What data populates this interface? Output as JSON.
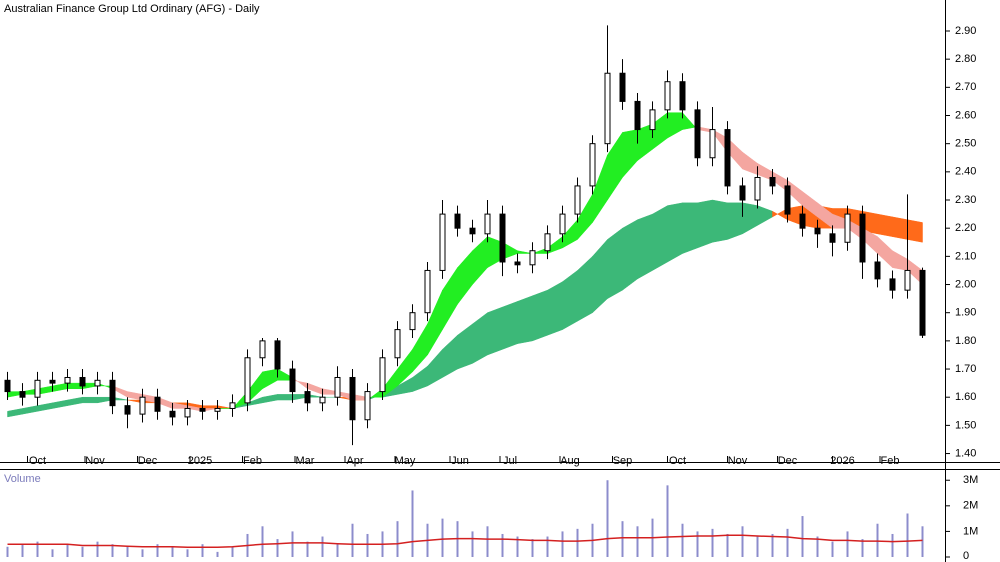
{
  "chart_data": {
    "type": "candlestick",
    "title": "Australian Finance Group Ltd Ordinary (AFG) - Daily",
    "x": [
      3,
      9,
      15,
      21,
      27,
      33,
      39,
      45,
      51,
      57,
      63,
      69,
      75,
      81,
      87,
      93,
      99,
      105,
      111,
      117,
      123,
      129,
      135,
      141,
      147,
      153,
      159,
      165,
      171,
      177,
      183,
      189,
      195,
      201,
      207,
      213,
      219,
      225,
      231,
      237,
      243,
      249,
      255,
      261,
      267,
      273,
      279,
      285,
      291,
      297,
      303,
      309,
      315,
      321,
      327,
      333,
      339,
      345,
      351,
      357,
      363,
      369
    ],
    "open": [
      1.66,
      1.62,
      1.6,
      1.66,
      1.65,
      1.67,
      1.64,
      1.66,
      1.57,
      1.54,
      1.6,
      1.55,
      1.53,
      1.56,
      1.55,
      1.56,
      1.58,
      1.74,
      1.8,
      1.7,
      1.62,
      1.58,
      1.6,
      1.67,
      1.52,
      1.62,
      1.74,
      1.84,
      1.9,
      2.05,
      2.25,
      2.2,
      2.18,
      2.25,
      2.08,
      2.07,
      2.12,
      2.18,
      2.25,
      2.35,
      2.5,
      2.75,
      2.65,
      2.55,
      2.62,
      2.72,
      2.62,
      2.45,
      2.55,
      2.35,
      2.3,
      2.38,
      2.35,
      2.25,
      2.2,
      2.18,
      2.15,
      2.25,
      2.08,
      2.02,
      1.98,
      2.05
    ],
    "high": [
      1.69,
      1.65,
      1.69,
      1.69,
      1.7,
      1.7,
      1.69,
      1.69,
      1.6,
      1.63,
      1.63,
      1.58,
      1.59,
      1.59,
      1.59,
      1.61,
      1.77,
      1.81,
      1.81,
      1.73,
      1.65,
      1.63,
      1.71,
      1.7,
      1.65,
      1.77,
      1.87,
      1.93,
      2.08,
      2.3,
      2.28,
      2.23,
      2.3,
      2.28,
      2.11,
      2.15,
      2.21,
      2.28,
      2.38,
      2.53,
      2.92,
      2.8,
      2.68,
      2.65,
      2.76,
      2.75,
      2.65,
      2.63,
      2.58,
      2.38,
      2.42,
      2.41,
      2.38,
      2.28,
      2.23,
      2.21,
      2.28,
      2.28,
      2.11,
      2.05,
      2.32,
      2.06
    ],
    "low": [
      1.59,
      1.57,
      1.57,
      1.62,
      1.62,
      1.61,
      1.61,
      1.54,
      1.49,
      1.51,
      1.52,
      1.5,
      1.5,
      1.52,
      1.52,
      1.53,
      1.55,
      1.71,
      1.67,
      1.58,
      1.55,
      1.55,
      1.57,
      1.43,
      1.49,
      1.59,
      1.71,
      1.81,
      1.87,
      2.02,
      2.17,
      2.15,
      2.15,
      2.03,
      2.04,
      2.04,
      2.09,
      2.15,
      2.22,
      2.32,
      2.47,
      2.62,
      2.5,
      2.52,
      2.59,
      2.59,
      2.42,
      2.42,
      2.32,
      2.24,
      2.27,
      2.32,
      2.22,
      2.17,
      2.13,
      2.1,
      2.12,
      2.02,
      1.99,
      1.95,
      1.95,
      1.81
    ],
    "close": [
      1.62,
      1.6,
      1.66,
      1.65,
      1.67,
      1.64,
      1.66,
      1.57,
      1.54,
      1.6,
      1.55,
      1.53,
      1.56,
      1.55,
      1.56,
      1.58,
      1.74,
      1.8,
      1.7,
      1.62,
      1.58,
      1.6,
      1.67,
      1.52,
      1.62,
      1.74,
      1.84,
      1.9,
      2.05,
      2.25,
      2.2,
      2.18,
      2.25,
      2.08,
      2.07,
      2.12,
      2.18,
      2.25,
      2.35,
      2.5,
      2.75,
      2.65,
      2.55,
      2.62,
      2.72,
      2.62,
      2.45,
      2.55,
      2.35,
      2.3,
      2.38,
      2.35,
      2.25,
      2.2,
      2.18,
      2.15,
      2.25,
      2.08,
      2.02,
      1.98,
      2.05,
      1.82
    ],
    "candle_color": "#000000",
    "xlim": [
      0,
      378
    ],
    "xticks": [
      {
        "value": 11,
        "label": "Oct"
      },
      {
        "value": 34,
        "label": "Nov"
      },
      {
        "value": 55,
        "label": "Dec"
      },
      {
        "value": 76,
        "label": "2025"
      },
      {
        "value": 97,
        "label": "Feb"
      },
      {
        "value": 118,
        "label": "Mar"
      },
      {
        "value": 138,
        "label": "Apr"
      },
      {
        "value": 158,
        "label": "May"
      },
      {
        "value": 180,
        "label": "Jun"
      },
      {
        "value": 200,
        "label": "Jul"
      },
      {
        "value": 224,
        "label": "Aug"
      },
      {
        "value": 245,
        "label": "Sep"
      },
      {
        "value": 267,
        "label": "Oct"
      },
      {
        "value": 291,
        "label": "Nov"
      },
      {
        "value": 311,
        "label": "Dec"
      },
      {
        "value": 333,
        "label": "2026"
      },
      {
        "value": 352,
        "label": "Feb"
      }
    ],
    "ylim": [
      1.37,
      3.01
    ],
    "yticks": [
      {
        "value": 1.4,
        "label": "1.40"
      },
      {
        "value": 1.5,
        "label": "1.50"
      },
      {
        "value": 1.6,
        "label": "1.60"
      },
      {
        "value": 1.7,
        "label": "1.70"
      },
      {
        "value": 1.8,
        "label": "1.80"
      },
      {
        "value": 1.9,
        "label": "1.90"
      },
      {
        "value": 2.0,
        "label": "2.00"
      },
      {
        "value": 2.1,
        "label": "2.10"
      },
      {
        "value": 2.2,
        "label": "2.20"
      },
      {
        "value": 2.3,
        "label": "2.30"
      },
      {
        "value": 2.4,
        "label": "2.40"
      },
      {
        "value": 2.5,
        "label": "2.50"
      },
      {
        "value": 2.6,
        "label": "2.60"
      },
      {
        "value": 2.7,
        "label": "2.70"
      },
      {
        "value": 2.8,
        "label": "2.80"
      },
      {
        "value": 2.9,
        "label": "2.90"
      }
    ],
    "ribbons": [
      {
        "up_color": "#3cb878",
        "down_color": "#ff6a1a",
        "a": [
          1.55,
          1.56,
          1.57,
          1.58,
          1.59,
          1.6,
          1.6,
          1.6,
          1.59,
          1.58,
          1.58,
          1.57,
          1.56,
          1.56,
          1.56,
          1.56,
          1.58,
          1.6,
          1.61,
          1.61,
          1.61,
          1.6,
          1.6,
          1.59,
          1.59,
          1.61,
          1.64,
          1.67,
          1.71,
          1.77,
          1.82,
          1.86,
          1.9,
          1.92,
          1.94,
          1.96,
          1.98,
          2.01,
          2.05,
          2.1,
          2.16,
          2.2,
          2.23,
          2.25,
          2.28,
          2.29,
          2.29,
          2.3,
          2.29,
          2.29,
          2.28,
          2.26,
          2.23,
          2.21,
          2.2,
          2.2,
          2.2,
          2.19,
          2.18,
          2.17,
          2.16,
          2.15
        ],
        "b": [
          1.53,
          1.54,
          1.55,
          1.56,
          1.57,
          1.58,
          1.58,
          1.59,
          1.59,
          1.59,
          1.59,
          1.58,
          1.58,
          1.57,
          1.57,
          1.56,
          1.57,
          1.58,
          1.59,
          1.59,
          1.6,
          1.6,
          1.6,
          1.6,
          1.6,
          1.6,
          1.61,
          1.62,
          1.64,
          1.67,
          1.7,
          1.72,
          1.75,
          1.77,
          1.79,
          1.8,
          1.82,
          1.84,
          1.87,
          1.9,
          1.95,
          1.98,
          2.02,
          2.05,
          2.08,
          2.11,
          2.13,
          2.15,
          2.16,
          2.18,
          2.21,
          2.24,
          2.27,
          2.28,
          2.28,
          2.27,
          2.27,
          2.26,
          2.25,
          2.24,
          2.23,
          2.22
        ]
      },
      {
        "up_color": "#22ee22",
        "down_color": "#f4a6a0",
        "a": [
          1.62,
          1.62,
          1.63,
          1.64,
          1.65,
          1.65,
          1.65,
          1.63,
          1.6,
          1.59,
          1.58,
          1.56,
          1.56,
          1.55,
          1.56,
          1.56,
          1.62,
          1.69,
          1.7,
          1.67,
          1.63,
          1.61,
          1.61,
          1.59,
          1.59,
          1.63,
          1.7,
          1.77,
          1.86,
          1.98,
          2.06,
          2.12,
          2.17,
          2.15,
          2.12,
          2.11,
          2.13,
          2.17,
          2.23,
          2.32,
          2.46,
          2.54,
          2.55,
          2.57,
          2.61,
          2.61,
          2.55,
          2.54,
          2.47,
          2.41,
          2.39,
          2.37,
          2.33,
          2.28,
          2.24,
          2.2,
          2.2,
          2.16,
          2.11,
          2.06,
          2.05,
          2.0
        ],
        "b": [
          1.6,
          1.61,
          1.61,
          1.62,
          1.63,
          1.63,
          1.64,
          1.64,
          1.62,
          1.61,
          1.6,
          1.58,
          1.57,
          1.56,
          1.56,
          1.56,
          1.58,
          1.63,
          1.66,
          1.66,
          1.65,
          1.63,
          1.62,
          1.61,
          1.6,
          1.6,
          1.64,
          1.69,
          1.75,
          1.84,
          1.93,
          2.0,
          2.06,
          2.09,
          2.11,
          2.11,
          2.11,
          2.13,
          2.16,
          2.22,
          2.3,
          2.38,
          2.44,
          2.48,
          2.52,
          2.55,
          2.56,
          2.55,
          2.52,
          2.47,
          2.43,
          2.4,
          2.37,
          2.33,
          2.29,
          2.25,
          2.23,
          2.2,
          2.17,
          2.12,
          2.09,
          2.05
        ]
      }
    ],
    "volume": {
      "title": "Volume",
      "color": "#8c8ccc",
      "average_color": "#d42020",
      "values": [
        400000,
        500000,
        600000,
        300000,
        500000,
        400000,
        600000,
        500000,
        400000,
        300000,
        500000,
        400000,
        300000,
        500000,
        200000,
        400000,
        900000,
        1200000,
        700000,
        1000000,
        600000,
        800000,
        500000,
        1300000,
        900000,
        1000000,
        1400000,
        2600000,
        1300000,
        1500000,
        1400000,
        1000000,
        1200000,
        900000,
        800000,
        700000,
        800000,
        1000000,
        1100000,
        1300000,
        3000000,
        1400000,
        1200000,
        1500000,
        2800000,
        1300000,
        1000000,
        1100000,
        900000,
        1200000,
        800000,
        900000,
        1100000,
        1600000,
        800000,
        600000,
        1000000,
        700000,
        1300000,
        900000,
        1700000,
        1200000
      ],
      "average": [
        500000,
        500000,
        500000,
        500000,
        500000,
        450000,
        450000,
        450000,
        420000,
        400000,
        400000,
        400000,
        380000,
        380000,
        380000,
        400000,
        450000,
        500000,
        520000,
        550000,
        550000,
        550000,
        520000,
        500000,
        500000,
        500000,
        520000,
        600000,
        650000,
        700000,
        720000,
        720000,
        700000,
        700000,
        680000,
        650000,
        650000,
        620000,
        620000,
        650000,
        720000,
        750000,
        750000,
        750000,
        780000,
        800000,
        820000,
        820000,
        850000,
        850000,
        820000,
        800000,
        780000,
        720000,
        700000,
        650000,
        650000,
        620000,
        620000,
        600000,
        620000,
        650000
      ],
      "ylim": [
        0,
        3400000
      ],
      "yticks": [
        0,
        {
          "value": 1000000,
          "label": "1M"
        },
        {
          "value": 2000000,
          "label": "2M"
        },
        {
          "value": 3000000,
          "label": "3M"
        }
      ]
    }
  }
}
